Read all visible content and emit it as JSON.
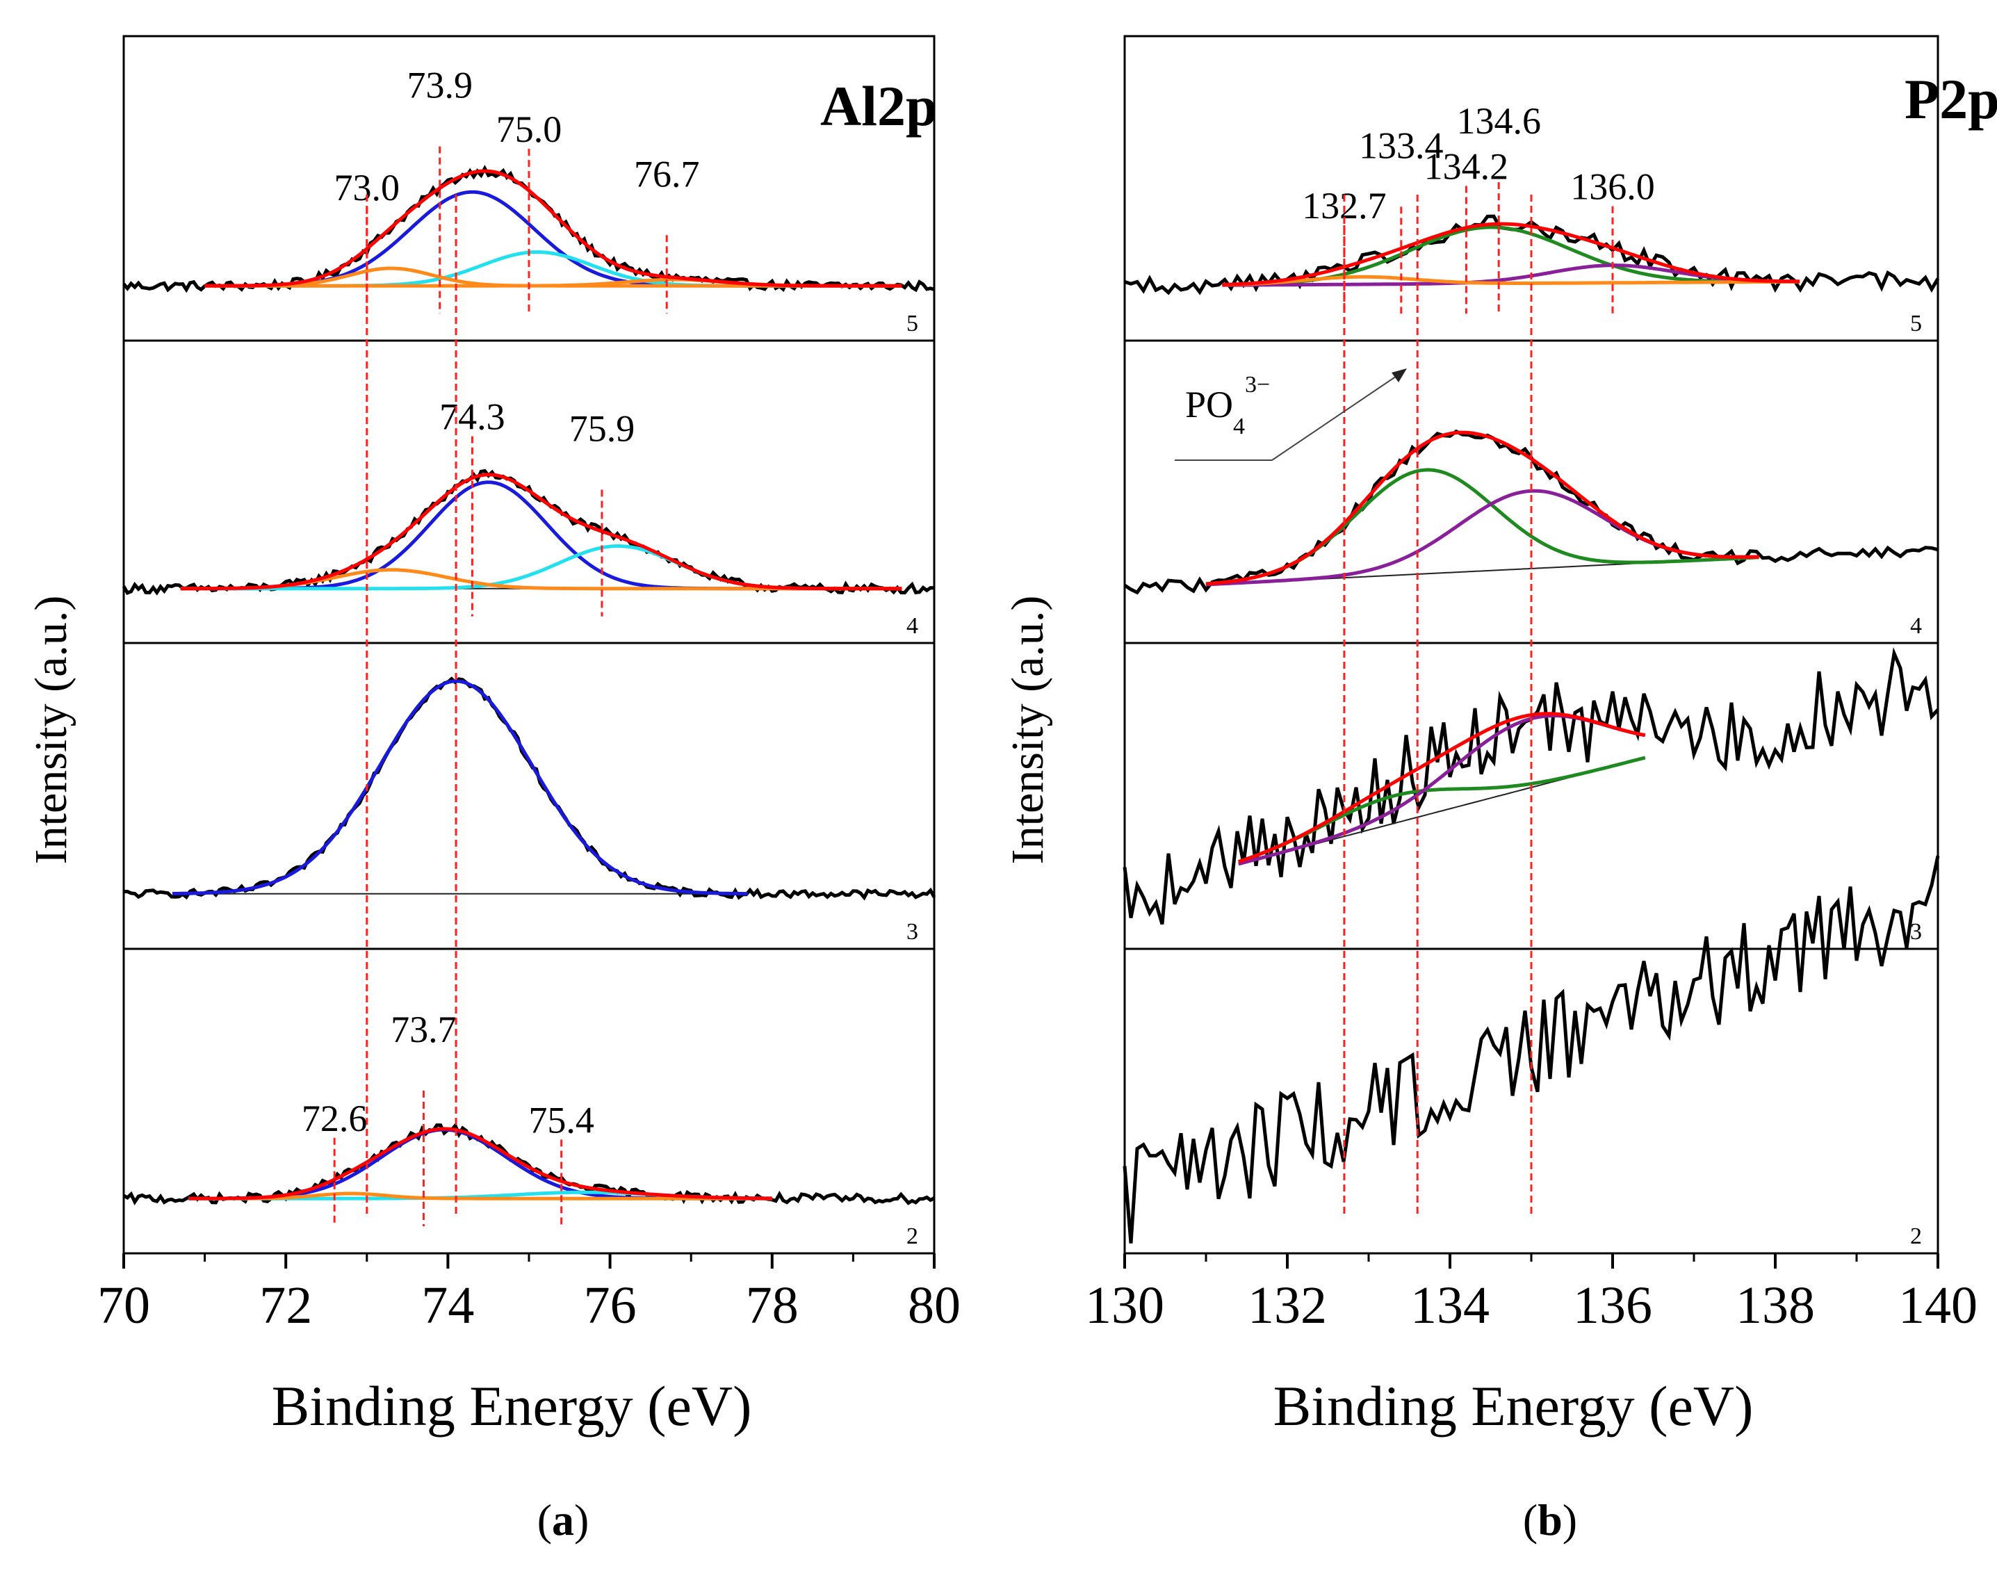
{
  "colors": {
    "raw": "#000000",
    "envelope": "#ff0000",
    "blue": "#1a1adc",
    "cyan": "#22e0ee",
    "orange": "#ff8a1a",
    "green": "#1f8a1f",
    "purple": "#8a1f9a",
    "background": "#222222",
    "marker": "#ff2020",
    "frame": "#000000"
  },
  "chart_data": [
    {
      "id": "a",
      "type": "line",
      "caption": "a",
      "title": "Al2p",
      "xlabel": "Binding Energy (eV)",
      "ylabel": "Intensity (a.u.)",
      "xlim": [
        70,
        80
      ],
      "xticks": [
        "70",
        "72",
        "74",
        "76",
        "78",
        "80"
      ],
      "grid": false,
      "reference_lines": [
        73.0,
        74.1
      ],
      "panels": [
        {
          "tag": "5",
          "noise": 0.035,
          "fit_range": [
            71.0,
            79.6
          ],
          "components": [
            {
              "color": "blue",
              "center": 74.3,
              "height": 0.75,
              "fwhm": 1.8
            },
            {
              "color": "cyan",
              "center": 75.1,
              "height": 0.27,
              "fwhm": 1.6
            },
            {
              "color": "orange",
              "center": 73.3,
              "height": 0.14,
              "fwhm": 1.2
            },
            {
              "color": "orange",
              "center": 76.8,
              "height": 0.05,
              "fwhm": 1.4
            }
          ],
          "markers": [
            {
              "x": 73.0,
              "label": "73.0"
            },
            {
              "x": 73.9,
              "label": "73.9"
            },
            {
              "x": 75.0,
              "label": "75.0"
            },
            {
              "x": 76.7,
              "label": "76.7"
            }
          ]
        },
        {
          "tag": "4",
          "noise": 0.035,
          "fit_range": [
            70.7,
            79.6
          ],
          "components": [
            {
              "color": "blue",
              "center": 74.5,
              "height": 0.85,
              "fwhm": 1.7
            },
            {
              "color": "cyan",
              "center": 76.1,
              "height": 0.34,
              "fwhm": 1.7
            },
            {
              "color": "orange",
              "center": 73.3,
              "height": 0.15,
              "fwhm": 1.6
            }
          ],
          "markers": [
            {
              "x": 74.3,
              "label": "74.3"
            },
            {
              "x": 75.9,
              "label": "75.9"
            }
          ]
        },
        {
          "tag": "3",
          "noise": 0.03,
          "fit_range": [
            70.6,
            77.7
          ],
          "components": [
            {
              "color": "blue",
              "center": 74.1,
              "height": 1.7,
              "fwhm": 2.2
            }
          ],
          "markers": []
        },
        {
          "tag": "2",
          "noise": 0.035,
          "fit_range": [
            70.8,
            78.0
          ],
          "components": [
            {
              "color": "blue",
              "center": 73.95,
              "height": 0.55,
              "fwhm": 1.8
            },
            {
              "color": "cyan",
              "center": 75.7,
              "height": 0.05,
              "fwhm": 2.0
            },
            {
              "color": "orange",
              "center": 72.8,
              "height": 0.04,
              "fwhm": 1.0
            }
          ],
          "markers": [
            {
              "x": 72.6,
              "label": "72.6"
            },
            {
              "x": 73.7,
              "label": "73.7"
            },
            {
              "x": 75.4,
              "label": "75.4"
            }
          ]
        }
      ]
    },
    {
      "id": "b",
      "type": "line",
      "caption": "b",
      "title": "P2p",
      "xlabel": "Binding Energy (eV)",
      "ylabel": "Intensity (a.u.)",
      "xlim": [
        130,
        140
      ],
      "xticks": [
        "130",
        "132",
        "134",
        "136",
        "138",
        "140"
      ],
      "grid": false,
      "reference_lines": [
        132.7,
        133.6,
        135.0
      ],
      "annotation": {
        "text": "PO",
        "sub": "4",
        "sup": "3−"
      },
      "panels": [
        {
          "tag": "5",
          "noise": 0.07,
          "trend": 0.04,
          "fit_range": [
            131.2,
            138.3
          ],
          "components": [
            {
              "color": "green",
              "center": 134.5,
              "height": 0.45,
              "fwhm": 2.3
            },
            {
              "color": "purple",
              "center": 136.0,
              "height": 0.14,
              "fwhm": 1.8
            },
            {
              "color": "orange",
              "center": 132.9,
              "height": 0.06,
              "fwhm": 1.6
            }
          ],
          "markers": [
            {
              "x": 132.7,
              "label": "132.7"
            },
            {
              "x": 133.4,
              "label": "133.4"
            },
            {
              "x": 134.2,
              "label": "134.2"
            },
            {
              "x": 134.6,
              "label": "134.6"
            },
            {
              "x": 136.0,
              "label": "136.0"
            }
          ]
        },
        {
          "tag": "4",
          "noise": 0.05,
          "trend": 0.32,
          "fit_range": [
            131.0,
            137.8
          ],
          "components": [
            {
              "color": "green",
              "center": 133.7,
              "height": 0.83,
              "fwhm": 2.0
            },
            {
              "color": "purple",
              "center": 135.0,
              "height": 0.62,
              "fwhm": 2.1
            }
          ],
          "markers": []
        },
        {
          "tag": "3",
          "noise": 0.35,
          "trend": 1.7,
          "fit_range": [
            131.4,
            136.4
          ],
          "components": [
            {
              "color": "green",
              "center": 133.3,
              "height": 0.22,
              "fwhm": 2.0
            },
            {
              "color": "purple",
              "center": 135.0,
              "height": 0.55,
              "fwhm": 2.2
            }
          ],
          "markers": []
        },
        {
          "tag": "2",
          "noise": 0.38,
          "trend": 2.4,
          "fit_range": null,
          "components": [],
          "markers": []
        }
      ]
    }
  ]
}
